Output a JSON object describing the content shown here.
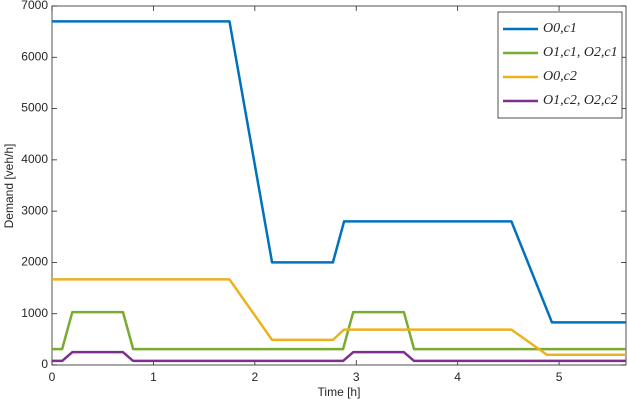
{
  "chart_data": {
    "type": "line",
    "xlabel": "Time [h]",
    "ylabel": "Demand [veh/h]",
    "xlim": [
      0,
      5.66
    ],
    "ylim": [
      0,
      7000
    ],
    "xticks": [
      0,
      1,
      2,
      3,
      4,
      5
    ],
    "yticks": [
      0,
      1000,
      2000,
      3000,
      4000,
      5000,
      6000,
      7000
    ],
    "grid": false,
    "legend": "top-right",
    "series": [
      {
        "name": "O0,c1",
        "color": "#0072bd",
        "x": [
          0,
          1.75,
          2.17,
          2.77,
          2.88,
          4.53,
          4.93,
          5.66
        ],
        "values": [
          6700,
          6700,
          2000,
          2000,
          2800,
          2800,
          830,
          830
        ]
      },
      {
        "name": "O1,c1, O2,c1",
        "color": "#77ac30",
        "x": [
          0,
          0.1,
          0.2,
          0.7,
          0.8,
          2.87,
          2.97,
          3.47,
          3.57,
          5.66
        ],
        "values": [
          310,
          310,
          1030,
          1030,
          310,
          310,
          1030,
          1030,
          310,
          310
        ]
      },
      {
        "name": "O0,c2",
        "color": "#edb120",
        "x": [
          0,
          1.75,
          2.17,
          2.77,
          2.88,
          4.53,
          4.88,
          5.66
        ],
        "values": [
          1670,
          1670,
          490,
          490,
          690,
          690,
          200,
          200
        ]
      },
      {
        "name": "O1,c2, O2,c2",
        "color": "#7e2f8e",
        "x": [
          0,
          0.1,
          0.2,
          0.7,
          0.8,
          2.87,
          2.97,
          3.47,
          3.57,
          5.66
        ],
        "values": [
          80,
          80,
          250,
          250,
          80,
          80,
          250,
          250,
          80,
          80
        ]
      }
    ]
  }
}
